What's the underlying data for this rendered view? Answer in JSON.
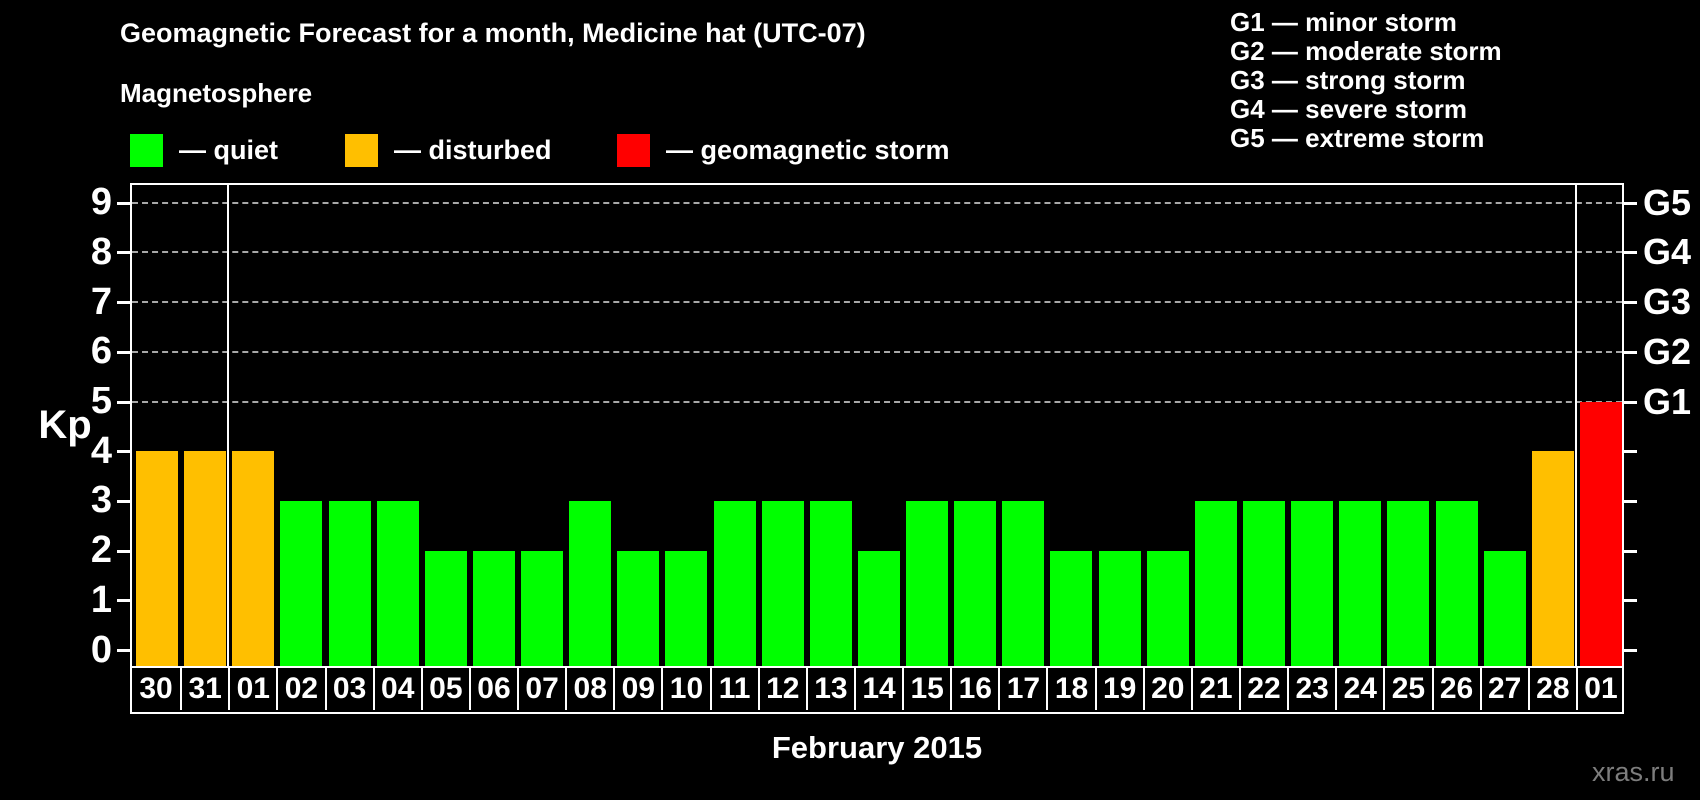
{
  "title": "Geomagnetic Forecast for a month, Medicine hat (UTC-07)",
  "subtitle": "Magnetosphere",
  "mag_legend": {
    "quiet": "— quiet",
    "disturbed": "— disturbed",
    "storm": "— geomagnetic storm"
  },
  "g_legend": [
    "G1 — minor storm",
    "G2 — moderate storm",
    "G3 — strong storm",
    "G4 — severe storm",
    "G5 — extreme storm"
  ],
  "axis": {
    "y_label": "Kp",
    "y_ticks": [
      0,
      1,
      2,
      3,
      4,
      5,
      6,
      7,
      8,
      9
    ],
    "right_labels": [
      {
        "label": "G5",
        "kp": 9
      },
      {
        "label": "G4",
        "kp": 8
      },
      {
        "label": "G3",
        "kp": 7
      },
      {
        "label": "G2",
        "kp": 6
      },
      {
        "label": "G1",
        "kp": 5
      }
    ]
  },
  "caption": "February 2015",
  "watermark": "xras.ru",
  "colors": {
    "quiet": "#00ff00",
    "disturbed": "#ffbf00",
    "storm": "#ff0000",
    "background": "#000000",
    "axis": "#ffffff",
    "gridline": "#a8a8a8"
  },
  "chart_data": {
    "type": "bar",
    "title": "Geomagnetic Forecast for a month, Medicine hat (UTC-07)",
    "xlabel": "February 2015",
    "ylabel": "Kp",
    "ylim": [
      0,
      9
    ],
    "grid": "dashed horizontal lines at Kp 5-9 (storm levels G1-G5)",
    "legend_position": "top",
    "categories": [
      "30",
      "31",
      "01",
      "02",
      "03",
      "04",
      "05",
      "06",
      "07",
      "08",
      "09",
      "10",
      "11",
      "12",
      "13",
      "14",
      "15",
      "16",
      "17",
      "18",
      "19",
      "20",
      "21",
      "22",
      "23",
      "24",
      "25",
      "26",
      "27",
      "28",
      "01"
    ],
    "values": [
      4,
      4,
      4,
      3,
      3,
      3,
      2,
      2,
      2,
      3,
      2,
      2,
      3,
      3,
      3,
      2,
      3,
      3,
      3,
      2,
      2,
      2,
      3,
      3,
      3,
      3,
      3,
      3,
      2,
      4,
      5
    ],
    "statuses": [
      "disturbed",
      "disturbed",
      "disturbed",
      "quiet",
      "quiet",
      "quiet",
      "quiet",
      "quiet",
      "quiet",
      "quiet",
      "quiet",
      "quiet",
      "quiet",
      "quiet",
      "quiet",
      "quiet",
      "quiet",
      "quiet",
      "quiet",
      "quiet",
      "quiet",
      "quiet",
      "quiet",
      "quiet",
      "quiet",
      "quiet",
      "quiet",
      "quiet",
      "quiet",
      "disturbed",
      "storm"
    ],
    "month_start_indices": [
      2,
      30
    ],
    "series_note": "Kp forecast per day; green = quiet (Kp<4), orange = disturbed (Kp 4), red = geomagnetic storm (Kp>=5)"
  }
}
